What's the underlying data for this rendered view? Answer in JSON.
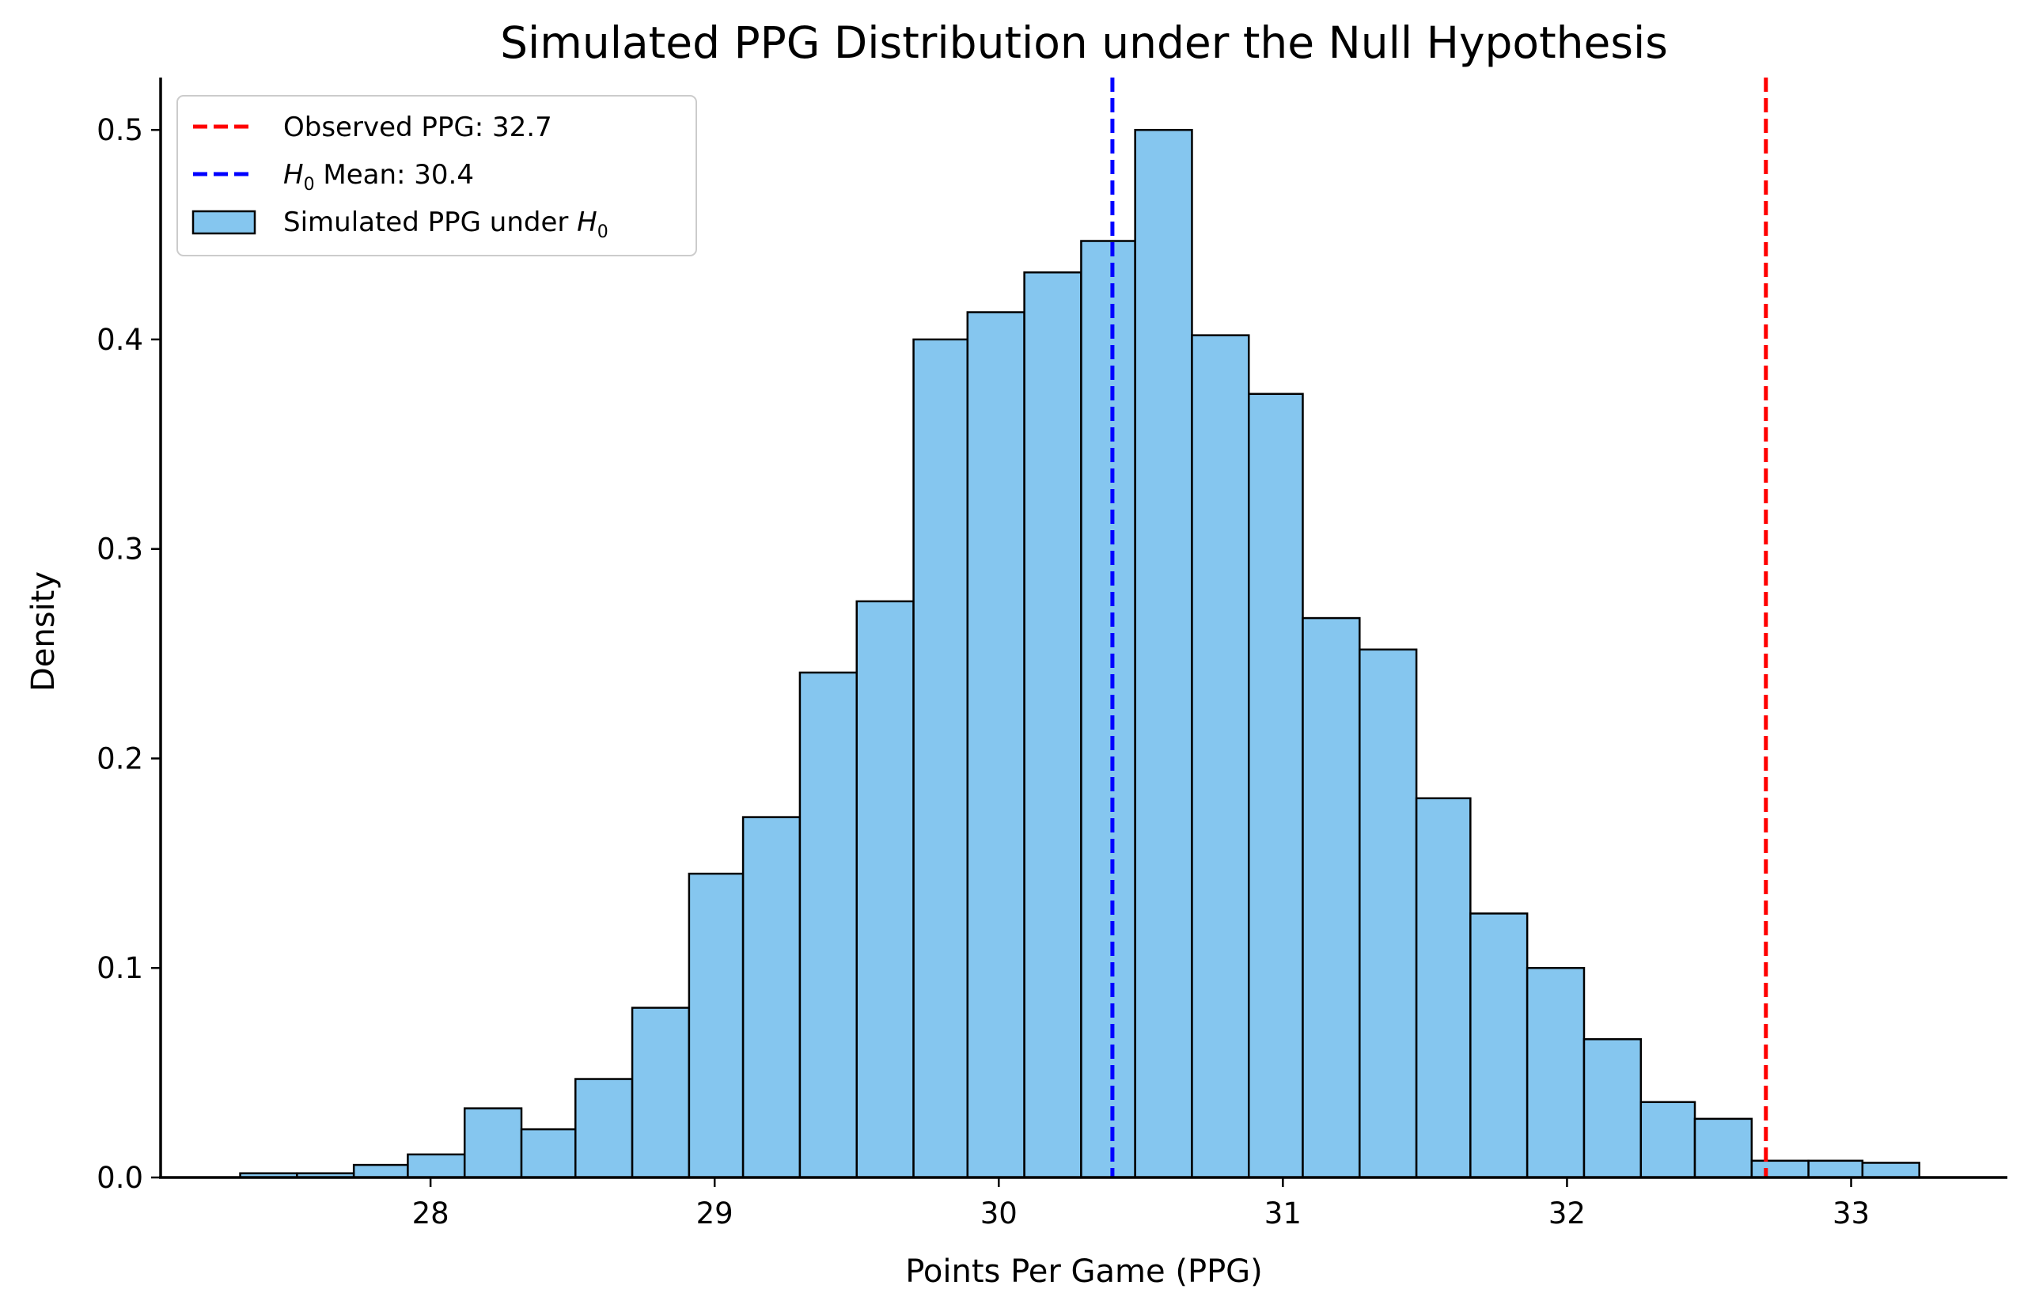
{
  "chart_data": {
    "type": "bar",
    "title": "Simulated PPG Distribution under the Null Hypothesis",
    "xlabel": "Points Per Game (PPG)",
    "ylabel": "Density",
    "xlim": [
      27.05,
      33.55
    ],
    "ylim": [
      0,
      0.525
    ],
    "xticks": [
      "28",
      "29",
      "30",
      "31",
      "32",
      "33"
    ],
    "yticks": [
      "0.0",
      "0.1",
      "0.2",
      "0.3",
      "0.4",
      "0.5"
    ],
    "grid": false,
    "legend_position": "top-left",
    "bin_edges": [
      27.33,
      27.53,
      27.73,
      27.92,
      28.12,
      28.32,
      28.51,
      28.71,
      28.91,
      29.1,
      29.3,
      29.5,
      29.7,
      29.89,
      30.09,
      30.29,
      30.48,
      30.68,
      30.88,
      31.07,
      31.27,
      31.47,
      31.66,
      31.86,
      32.06,
      32.26,
      32.45,
      32.65,
      32.85,
      33.04,
      33.24
    ],
    "bins": [
      0.002,
      0.002,
      0.006,
      0.011,
      0.033,
      0.023,
      0.047,
      0.081,
      0.145,
      0.172,
      0.241,
      0.275,
      0.4,
      0.413,
      0.432,
      0.447,
      0.5,
      0.402,
      0.374,
      0.267,
      0.252,
      0.181,
      0.126,
      0.1,
      0.066,
      0.036,
      0.028,
      0.008,
      0.008,
      0.007
    ],
    "vlines": [
      {
        "name": "Observed PPG: 32.7",
        "x": 32.7,
        "color": "#ff0000"
      },
      {
        "name": "H0 Mean: 30.4",
        "x": 30.4,
        "color": "#0000ff"
      }
    ],
    "series": [
      {
        "name": "Simulated PPG under H0",
        "color": "#85c6ef",
        "edge_color": "#000000"
      }
    ]
  },
  "legend": {
    "observed_label": "Observed PPG: 32.7",
    "h0_prefix": "H",
    "h0_sub": "0",
    "h0_suffix": " Mean: 30.4",
    "sim_prefix": "Simulated PPG under ",
    "sim_h": "H",
    "sim_sub": "0"
  }
}
